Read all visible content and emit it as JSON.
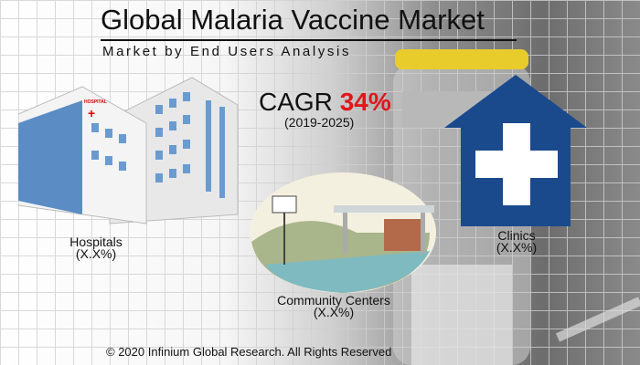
{
  "title": "Global Malaria Vaccine Market",
  "subtitle": "Market by End Users Analysis",
  "cagr": {
    "label": "CAGR",
    "value": "34%",
    "period": "(2019-2025)"
  },
  "segments": [
    {
      "name": "Hospitals",
      "share": "(X.X%)",
      "icon": "hospital-building-icon"
    },
    {
      "name": "Community Centers",
      "share": "(X.X%)",
      "icon": "community-center-icon"
    },
    {
      "name": "Clinics",
      "share": "(X.X%)",
      "icon": "clinic-house-cross-icon"
    }
  ],
  "hospital_sign": "HOSPITAL",
  "footer": "© 2020 Infinium Global Research. All Rights Reserved",
  "colors": {
    "cagr_value": "#e0161b",
    "clinic_icon": "#1a4a8c",
    "vial_cap": "#e8cc2c"
  }
}
